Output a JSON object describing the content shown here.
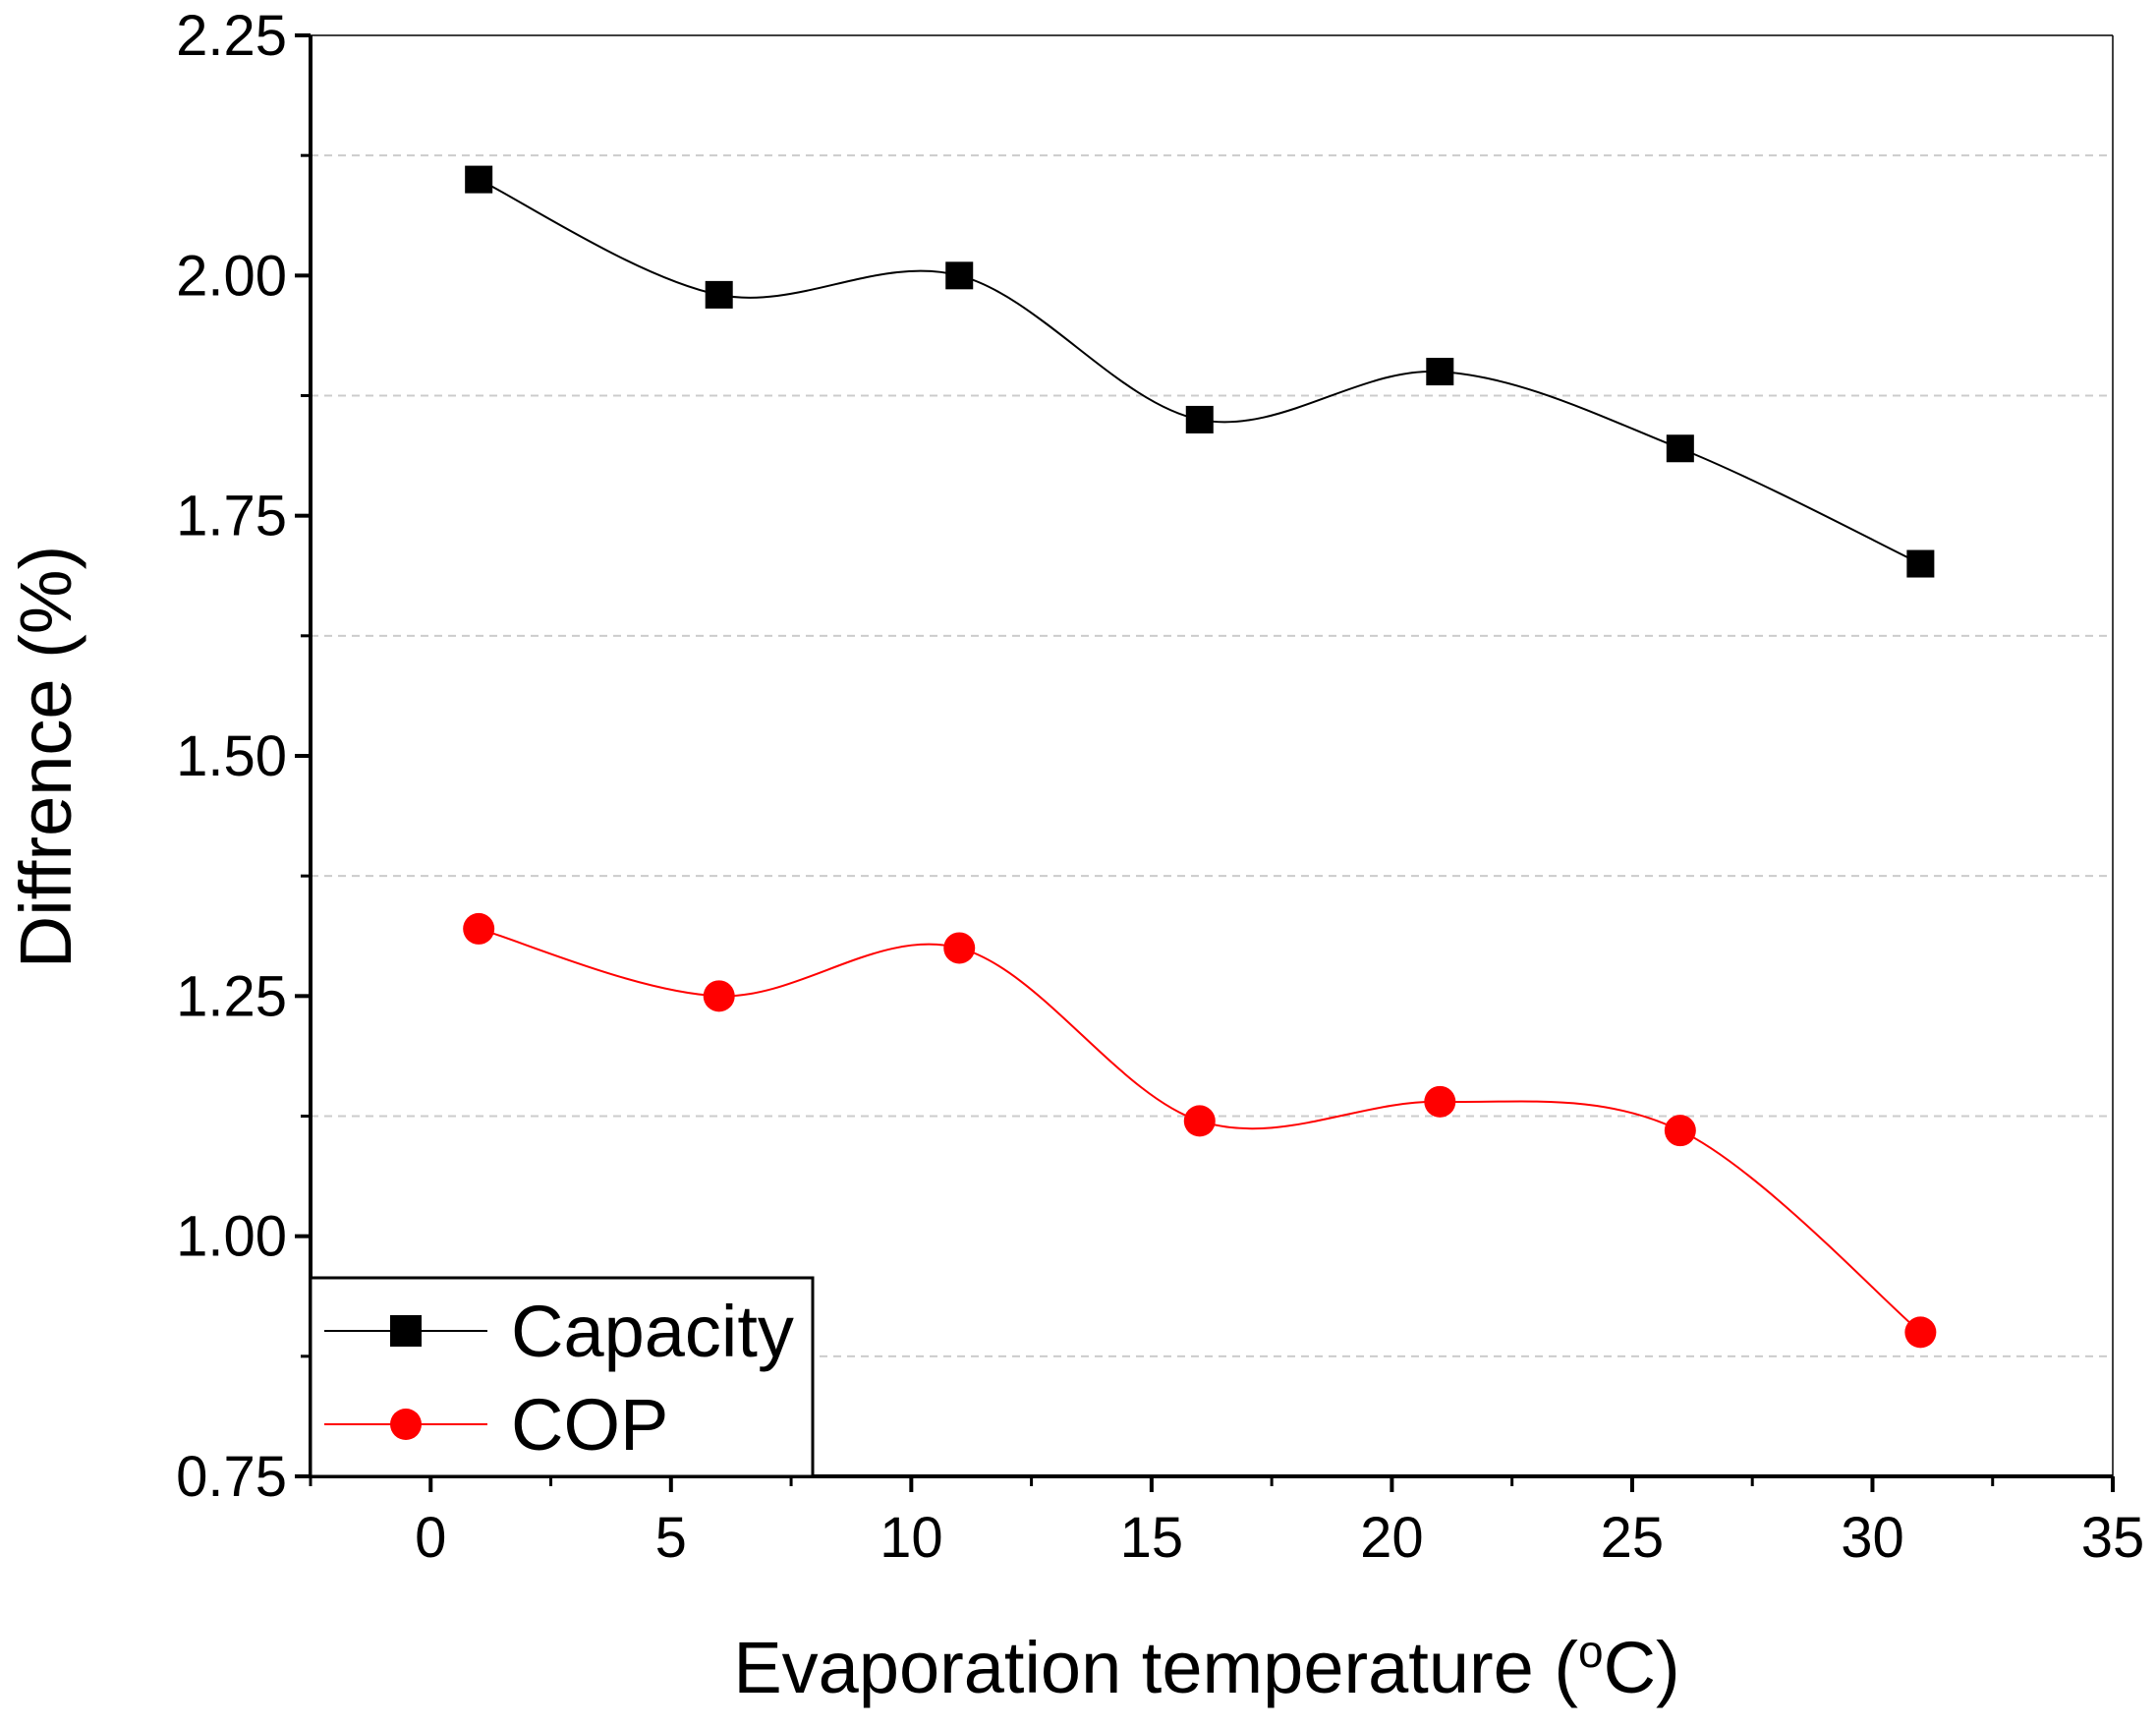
{
  "chart_data": {
    "type": "line",
    "title": "",
    "xlabel": {
      "prefix": "Evaporation temperature (",
      "superscript": "o",
      "suffix": "C)"
    },
    "ylabel": "Diffrence (%)",
    "xlim": [
      -2.5,
      35
    ],
    "ylim": [
      0.75,
      2.25
    ],
    "x_ticks": [
      0,
      5,
      10,
      15,
      20,
      25,
      30,
      35
    ],
    "x_tick_labels": [
      "0",
      "5",
      "10",
      "15",
      "20",
      "25",
      "30",
      "35"
    ],
    "x_minor_ticks": [
      -2.5,
      2.5,
      7.5,
      12.5,
      17.5,
      22.5,
      27.5,
      32.5
    ],
    "y_ticks": [
      0.75,
      1.0,
      1.25,
      1.5,
      1.75,
      2.0,
      2.25
    ],
    "y_tick_labels": [
      "0.75",
      "1.00",
      "1.25",
      "1.50",
      "1.75",
      "2.00",
      "2.25"
    ],
    "y_minor_ticks": [
      0.875,
      1.125,
      1.375,
      1.625,
      1.875,
      2.125
    ],
    "grid": "horizontal dashed at minor y ticks",
    "x": [
      1,
      6,
      11,
      16,
      21,
      26,
      31
    ],
    "series": [
      {
        "name": "Capacity",
        "marker": "square",
        "color": "#000000",
        "values": [
          2.1,
          1.98,
          2.0,
          1.85,
          1.9,
          1.82,
          1.7
        ]
      },
      {
        "name": "COP",
        "marker": "circle",
        "color": "#ff0000",
        "values": [
          1.32,
          1.25,
          1.3,
          1.12,
          1.14,
          1.11,
          0.9
        ]
      }
    ],
    "legend": {
      "position": "bottom-left",
      "entries": [
        "Capacity",
        "COP"
      ]
    }
  }
}
